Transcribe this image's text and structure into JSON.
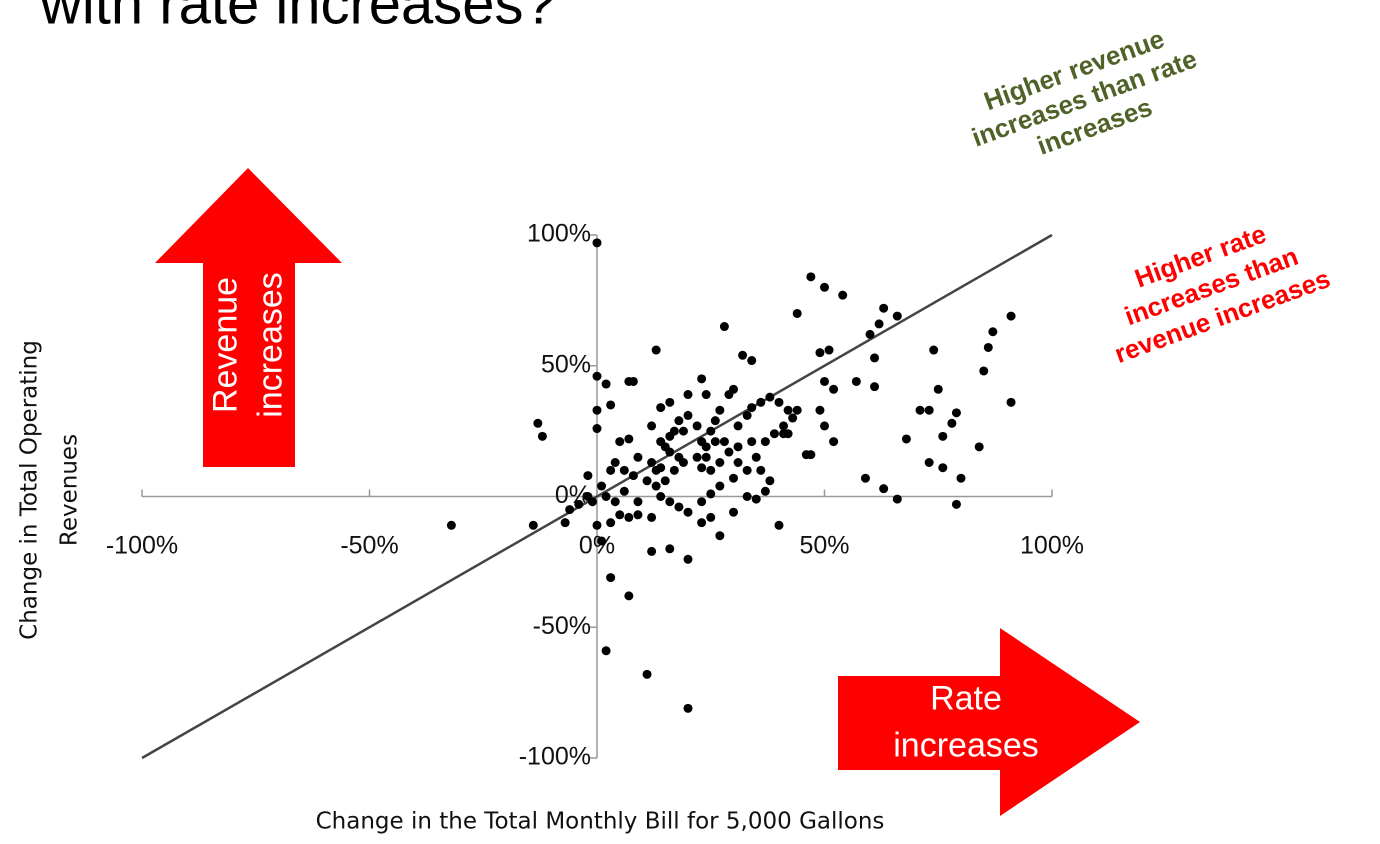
{
  "chart_data": {
    "type": "scatter",
    "title": "with rate increases?",
    "xlabel": "Change in the Total Monthly Bill for 5,000 Gallons",
    "ylabel": [
      "Change in Total Operating",
      "Revenues"
    ],
    "annotations": [
      {
        "lines": [
          "Higher revenue",
          "increases than rate",
          "increases"
        ],
        "color": "#4f6228"
      },
      {
        "lines": [
          "Higher rate",
          "increases than",
          "revenue increases"
        ],
        "color": "#ff0000"
      },
      {
        "lines": [
          "Revenue",
          "increases"
        ],
        "color": "#ff0000"
      },
      {
        "lines": [
          "Rate",
          "increases"
        ],
        "color": "#ff0000"
      }
    ],
    "xlim": [
      -100,
      100
    ],
    "ylim": [
      -100,
      100
    ],
    "xticks": [
      {
        "value": -100,
        "label": "-100%"
      },
      {
        "value": -50,
        "label": "-50%"
      },
      {
        "value": 0,
        "label": "0%"
      },
      {
        "value": 50,
        "label": "50%"
      },
      {
        "value": 100,
        "label": "100%"
      }
    ],
    "yticks": [
      {
        "value": -100,
        "label": "-100%"
      },
      {
        "value": -50,
        "label": "-50%"
      },
      {
        "value": 0,
        "label": "0%"
      },
      {
        "value": 50,
        "label": "50%"
      },
      {
        "value": 100,
        "label": "100%"
      }
    ],
    "color": "#000000",
    "x": [
      0,
      -32,
      -13,
      -12,
      -14,
      -7,
      -6,
      -4,
      -2,
      0,
      2,
      3,
      0,
      0,
      7,
      8,
      13,
      28,
      3,
      7,
      2,
      11,
      20,
      12,
      16,
      20,
      0,
      1,
      40,
      44,
      47,
      50,
      54,
      57,
      62,
      63,
      66,
      60,
      61,
      61,
      59,
      63,
      66,
      68,
      74,
      71,
      73,
      75,
      73,
      76,
      76,
      78,
      79,
      80,
      79,
      84,
      85,
      86,
      87,
      91,
      91,
      49,
      51,
      50,
      52,
      49,
      50,
      52,
      47,
      46,
      42,
      44,
      43,
      41,
      41,
      42,
      39,
      37,
      34,
      32,
      29,
      30,
      24,
      23,
      20,
      5,
      7,
      9,
      12,
      13,
      14,
      15,
      16,
      17,
      18,
      20,
      22,
      23,
      24,
      25,
      26,
      27,
      28,
      29,
      31,
      33,
      34,
      35,
      36,
      37,
      38,
      33,
      30,
      27,
      25,
      23,
      20,
      18,
      16,
      14,
      12,
      9,
      7,
      5,
      4,
      2,
      1,
      3,
      4,
      6,
      8,
      11,
      13,
      15,
      17,
      19,
      22,
      24,
      26,
      18,
      16,
      14,
      12,
      14,
      16,
      19,
      23,
      25,
      27,
      31,
      31,
      34,
      36,
      38,
      40,
      23,
      25,
      27,
      30,
      33,
      35,
      9,
      6,
      3,
      -2,
      -1
    ],
    "values": [
      97,
      -11,
      28,
      23,
      -11,
      -10,
      -5,
      -3,
      8,
      46,
      43,
      35,
      33,
      26,
      44,
      44,
      56,
      65,
      -31,
      -38,
      -59,
      -68,
      -81,
      -21,
      -20,
      -24,
      -11,
      -17,
      -11,
      70,
      84,
      80,
      77,
      44,
      66,
      72,
      69,
      62,
      53,
      42,
      7,
      3,
      -1,
      22,
      56,
      33,
      33,
      41,
      13,
      11,
      23,
      28,
      32,
      7,
      -3,
      19,
      48,
      57,
      63,
      69,
      36,
      55,
      56,
      44,
      41,
      33,
      27,
      21,
      16,
      16,
      33,
      33,
      30,
      27,
      24,
      24,
      24,
      21,
      52,
      54,
      39,
      41,
      39,
      45,
      39,
      21,
      22,
      15,
      13,
      10,
      11,
      19,
      23,
      25,
      29,
      31,
      27,
      21,
      15,
      25,
      29,
      33,
      21,
      17,
      27,
      31,
      21,
      15,
      10,
      2,
      6,
      10,
      7,
      4,
      1,
      -2,
      -6,
      -4,
      -2,
      0,
      -8,
      -7,
      -8,
      -7,
      -2,
      0,
      4,
      10,
      13,
      10,
      8,
      6,
      4,
      6,
      10,
      13,
      15,
      19,
      21,
      15,
      17,
      21,
      27,
      34,
      36,
      25,
      11,
      10,
      13,
      13,
      19,
      34,
      36,
      38,
      36,
      -10,
      -8,
      -15,
      -6,
      0,
      -1,
      -2,
      2,
      -10,
      0,
      -2
    ]
  }
}
